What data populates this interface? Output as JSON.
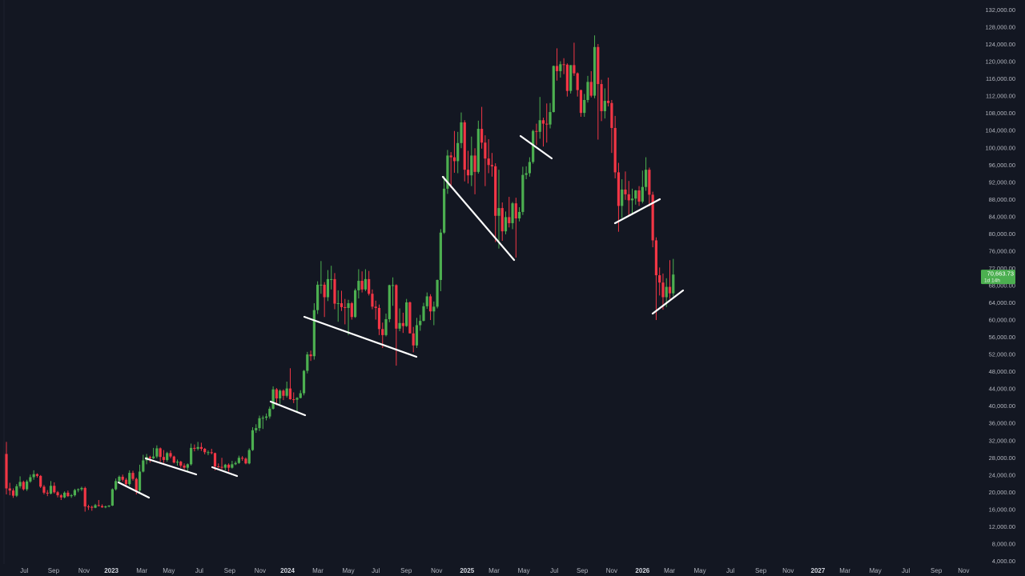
{
  "chart_data": {
    "type": "candlestick",
    "up_color": "#4caf50",
    "down_color": "#f23645",
    "background": "#131722",
    "grid": false,
    "xlim": [
      -1.87,
      283.8
    ],
    "ylim": [
      3440,
      134420
    ],
    "xticks": [
      {
        "value": 5.2,
        "label": "Jul"
      },
      {
        "value": 13.8,
        "label": "Sep"
      },
      {
        "value": 22.7,
        "label": "Nov"
      },
      {
        "value": 30.7,
        "label": "2023"
      },
      {
        "value": 39.6,
        "label": "Mar"
      },
      {
        "value": 47.5,
        "label": "May"
      },
      {
        "value": 56.4,
        "label": "Jul"
      },
      {
        "value": 65.3,
        "label": "Sep"
      },
      {
        "value": 74.2,
        "label": "Nov"
      },
      {
        "value": 82.2,
        "label": "2024"
      },
      {
        "value": 91.1,
        "label": "Mar"
      },
      {
        "value": 100,
        "label": "May"
      },
      {
        "value": 108,
        "label": "Jul"
      },
      {
        "value": 116.9,
        "label": "Sep"
      },
      {
        "value": 125.8,
        "label": "Nov"
      },
      {
        "value": 134.7,
        "label": "2025"
      },
      {
        "value": 142.6,
        "label": "Mar"
      },
      {
        "value": 151.3,
        "label": "May"
      },
      {
        "value": 160.2,
        "label": "Jul"
      },
      {
        "value": 168.4,
        "label": "Sep"
      },
      {
        "value": 177,
        "label": "Nov"
      },
      {
        "value": 186,
        "label": "2026"
      },
      {
        "value": 193.9,
        "label": "Mar"
      },
      {
        "value": 202.8,
        "label": "May"
      },
      {
        "value": 211.7,
        "label": "Jul"
      },
      {
        "value": 220.6,
        "label": "Sep"
      },
      {
        "value": 228.6,
        "label": "Nov"
      },
      {
        "value": 237.3,
        "label": "2027"
      },
      {
        "value": 245.2,
        "label": "Mar"
      },
      {
        "value": 254.1,
        "label": "May"
      },
      {
        "value": 263,
        "label": "Jul"
      },
      {
        "value": 271.9,
        "label": "Sep"
      },
      {
        "value": 279.9,
        "label": "Nov"
      }
    ],
    "yticks": [
      {
        "value": 132000,
        "label": "132,000.00"
      },
      {
        "value": 128000,
        "label": "128,000.00"
      },
      {
        "value": 124000,
        "label": "124,000.00"
      },
      {
        "value": 120000,
        "label": "120,000.00"
      },
      {
        "value": 116000,
        "label": "116,000.00"
      },
      {
        "value": 112000,
        "label": "112,000.00"
      },
      {
        "value": 108000,
        "label": "108,000.00"
      },
      {
        "value": 104000,
        "label": "104,000.00"
      },
      {
        "value": 100000,
        "label": "100,000.00"
      },
      {
        "value": 96000,
        "label": "96,000.00"
      },
      {
        "value": 92000,
        "label": "92,000.00"
      },
      {
        "value": 88000,
        "label": "88,000.00"
      },
      {
        "value": 84000,
        "label": "84,000.00"
      },
      {
        "value": 80000,
        "label": "80,000.00"
      },
      {
        "value": 76000,
        "label": "76,000.00"
      },
      {
        "value": 72000,
        "label": "72,000.00"
      },
      {
        "value": 68000,
        "label": "68,000.00"
      },
      {
        "value": 64000,
        "label": "64,000.00"
      },
      {
        "value": 60000,
        "label": "60,000.00"
      },
      {
        "value": 56000,
        "label": "56,000.00"
      },
      {
        "value": 52000,
        "label": "52,000.00"
      },
      {
        "value": 48000,
        "label": "48,000.00"
      },
      {
        "value": 44000,
        "label": "44,000.00"
      },
      {
        "value": 40000,
        "label": "40,000.00"
      },
      {
        "value": 36000,
        "label": "36,000.00"
      },
      {
        "value": 32000,
        "label": "32,000.00"
      },
      {
        "value": 28000,
        "label": "28,000.00"
      },
      {
        "value": 24000,
        "label": "24,000.00"
      },
      {
        "value": 20000,
        "label": "20,000.00"
      },
      {
        "value": 16000,
        "label": "16,000.00"
      },
      {
        "value": 12000,
        "label": "12,000.00"
      },
      {
        "value": 8000,
        "label": "8,000.00"
      },
      {
        "value": 4000,
        "label": "4,000.00"
      }
    ],
    "last_price": {
      "value": 70663.73,
      "label": "70,663.73"
    },
    "countdown": "1d 14h",
    "ohlc": [
      [
        29000,
        31800,
        19600,
        21000
      ],
      [
        21000,
        22300,
        19400,
        20500
      ],
      [
        20500,
        21000,
        18800,
        19300
      ],
      [
        19300,
        22000,
        19000,
        21500
      ],
      [
        21500,
        23800,
        21000,
        22500
      ],
      [
        22500,
        22800,
        20500,
        20800
      ],
      [
        20800,
        23000,
        20400,
        22600
      ],
      [
        22600,
        24200,
        22300,
        23600
      ],
      [
        23600,
        25200,
        23000,
        24300
      ],
      [
        24300,
        24500,
        23500,
        23900
      ],
      [
        23900,
        24100,
        21100,
        21400
      ],
      [
        21400,
        21800,
        19600,
        20000
      ],
      [
        20000,
        20600,
        19200,
        19800
      ],
      [
        19800,
        22700,
        19600,
        21600
      ],
      [
        21600,
        22400,
        19800,
        20100
      ],
      [
        20100,
        20400,
        18900,
        19400
      ],
      [
        19400,
        19700,
        18300,
        18900
      ],
      [
        18900,
        20300,
        18700,
        20000
      ],
      [
        20000,
        20500,
        19000,
        19200
      ],
      [
        19200,
        19700,
        18800,
        19400
      ],
      [
        19400,
        20900,
        19100,
        20600
      ],
      [
        20600,
        21000,
        20100,
        20800
      ],
      [
        20800,
        21400,
        20400,
        21100
      ],
      [
        21100,
        21400,
        15600,
        16800
      ],
      [
        16800,
        17200,
        16000,
        16700
      ],
      [
        16700,
        17000,
        15800,
        16500
      ],
      [
        16500,
        17400,
        16400,
        17100
      ],
      [
        17100,
        18300,
        16800,
        16900
      ],
      [
        16900,
        17300,
        16500,
        16600
      ],
      [
        16600,
        17000,
        16400,
        16800
      ],
      [
        16800,
        17100,
        16600,
        17000
      ],
      [
        17000,
        21000,
        16900,
        20800
      ],
      [
        20800,
        23300,
        20500,
        22700
      ],
      [
        22700,
        24000,
        22400,
        23700
      ],
      [
        23700,
        24200,
        22600,
        23000
      ],
      [
        23000,
        23400,
        21400,
        22000
      ],
      [
        22000,
        25200,
        21600,
        24600
      ],
      [
        24600,
        25100,
        22800,
        23200
      ],
      [
        23200,
        23500,
        19600,
        20500
      ],
      [
        20500,
        26500,
        20000,
        24900
      ],
      [
        24900,
        28800,
        24700,
        27500
      ],
      [
        27500,
        29000,
        26600,
        28300
      ],
      [
        28300,
        28600,
        27000,
        28000
      ],
      [
        28000,
        30400,
        27800,
        28400
      ],
      [
        28400,
        31000,
        28000,
        30300
      ],
      [
        30300,
        30500,
        27200,
        28300
      ],
      [
        28300,
        29900,
        26900,
        27600
      ],
      [
        27600,
        29500,
        27200,
        29200
      ],
      [
        29200,
        29800,
        28000,
        28400
      ],
      [
        28400,
        28600,
        26800,
        27000
      ],
      [
        27000,
        27700,
        26300,
        27200
      ],
      [
        27200,
        27400,
        25800,
        26300
      ],
      [
        26300,
        26800,
        25400,
        25800
      ],
      [
        25800,
        26800,
        24800,
        26600
      ],
      [
        26600,
        31400,
        26300,
        30400
      ],
      [
        30400,
        31200,
        29600,
        30200
      ],
      [
        30200,
        31800,
        29800,
        30600
      ],
      [
        30600,
        31600,
        29700,
        30200
      ],
      [
        30200,
        30400,
        28900,
        29400
      ],
      [
        29400,
        29800,
        28700,
        29400
      ],
      [
        29400,
        30200,
        28900,
        29200
      ],
      [
        29200,
        29300,
        25200,
        26100
      ],
      [
        26100,
        26800,
        25800,
        26000
      ],
      [
        26000,
        28100,
        25400,
        25800
      ],
      [
        25800,
        26700,
        25200,
        26500
      ],
      [
        26500,
        26800,
        24900,
        25800
      ],
      [
        25800,
        27400,
        25600,
        26600
      ],
      [
        26600,
        27300,
        26400,
        26900
      ],
      [
        26900,
        28600,
        26700,
        28100
      ],
      [
        28100,
        28500,
        27400,
        27900
      ],
      [
        27900,
        28200,
        26600,
        26800
      ],
      [
        26800,
        30300,
        26600,
        29900
      ],
      [
        29900,
        35200,
        29700,
        34500
      ],
      [
        34500,
        35900,
        33900,
        35000
      ],
      [
        35000,
        37900,
        34300,
        37300
      ],
      [
        37300,
        37900,
        34800,
        37400
      ],
      [
        37400,
        38400,
        36800,
        37700
      ],
      [
        37700,
        40000,
        37200,
        39500
      ],
      [
        39500,
        44700,
        39300,
        44000
      ],
      [
        44000,
        44300,
        40300,
        41900
      ],
      [
        41900,
        44000,
        40600,
        43700
      ],
      [
        43700,
        44000,
        41500,
        42500
      ],
      [
        42500,
        45800,
        42100,
        44200
      ],
      [
        44200,
        48900,
        41600,
        41700
      ],
      [
        41700,
        43300,
        40800,
        41600
      ],
      [
        41600,
        42200,
        38600,
        42000
      ],
      [
        42000,
        43800,
        41900,
        43100
      ],
      [
        43100,
        48500,
        42600,
        48300
      ],
      [
        48300,
        52700,
        47700,
        52100
      ],
      [
        52100,
        53000,
        50600,
        51700
      ],
      [
        51700,
        64000,
        50900,
        62400
      ],
      [
        62400,
        69100,
        61500,
        68300
      ],
      [
        68300,
        73800,
        66200,
        68300
      ],
      [
        68300,
        68900,
        60800,
        65400
      ],
      [
        65400,
        71700,
        64500,
        69600
      ],
      [
        69600,
        72700,
        67200,
        69600
      ],
      [
        69600,
        71000,
        62600,
        63900
      ],
      [
        63900,
        67000,
        59700,
        64000
      ],
      [
        64000,
        66900,
        62200,
        63100
      ],
      [
        63100,
        65000,
        59100,
        62900
      ],
      [
        62900,
        64800,
        56600,
        64000
      ],
      [
        64000,
        64300,
        60200,
        60800
      ],
      [
        60800,
        67400,
        60600,
        67000
      ],
      [
        67000,
        71900,
        65100,
        69200
      ],
      [
        69200,
        71400,
        66500,
        67200
      ],
      [
        67200,
        71900,
        66800,
        69600
      ],
      [
        69600,
        71500,
        65800,
        66200
      ],
      [
        66200,
        67200,
        62600,
        63200
      ],
      [
        63200,
        64600,
        60200,
        62900
      ],
      [
        62900,
        63700,
        56600,
        58000
      ],
      [
        58000,
        59500,
        53600,
        56600
      ],
      [
        56600,
        61600,
        56300,
        60300
      ],
      [
        60300,
        68300,
        59600,
        68200
      ],
      [
        68200,
        70000,
        63400,
        68200
      ],
      [
        68200,
        68400,
        49500,
        58100
      ],
      [
        58100,
        62800,
        57500,
        59400
      ],
      [
        59400,
        61800,
        57100,
        58700
      ],
      [
        58700,
        65000,
        58500,
        64200
      ],
      [
        64200,
        64400,
        57000,
        57000
      ],
      [
        57000,
        58500,
        52600,
        54200
      ],
      [
        54200,
        60600,
        53600,
        58900
      ],
      [
        58900,
        61300,
        57600,
        59900
      ],
      [
        59900,
        64100,
        59800,
        63300
      ],
      [
        63300,
        66500,
        62700,
        65600
      ],
      [
        65600,
        66100,
        60100,
        62100
      ],
      [
        62100,
        64400,
        58900,
        63200
      ],
      [
        63200,
        69500,
        62800,
        69400
      ],
      [
        69400,
        81200,
        66800,
        80400
      ],
      [
        80400,
        93500,
        80100,
        90600
      ],
      [
        90600,
        99600,
        89400,
        98300
      ],
      [
        98300,
        99100,
        90800,
        97900
      ],
      [
        97900,
        104000,
        94300,
        97000
      ],
      [
        97000,
        103800,
        94200,
        101200
      ],
      [
        101200,
        108300,
        100000,
        106000
      ],
      [
        106000,
        106500,
        92300,
        95000
      ],
      [
        95000,
        99400,
        91800,
        93700
      ],
      [
        93700,
        102700,
        91200,
        98300
      ],
      [
        98300,
        100000,
        89300,
        94500
      ],
      [
        94500,
        106400,
        94100,
        104500
      ],
      [
        104500,
        109600,
        99900,
        101300
      ],
      [
        101300,
        103000,
        91200,
        97600
      ],
      [
        97600,
        102100,
        94200,
        96100
      ],
      [
        96100,
        98900,
        93400,
        95800
      ],
      [
        95800,
        96500,
        78200,
        84300
      ],
      [
        84300,
        95000,
        76700,
        86100
      ],
      [
        86100,
        87400,
        78500,
        80700
      ],
      [
        80700,
        85300,
        80000,
        84000
      ],
      [
        84000,
        88700,
        81600,
        82600
      ],
      [
        82600,
        87500,
        81200,
        87200
      ],
      [
        87200,
        88500,
        74600,
        83700
      ],
      [
        83700,
        86300,
        83000,
        85200
      ],
      [
        85200,
        95700,
        84500,
        93800
      ],
      [
        93800,
        95800,
        92800,
        94200
      ],
      [
        94200,
        97900,
        93400,
        96800
      ],
      [
        96800,
        104300,
        96400,
        104000
      ],
      [
        104000,
        105700,
        100700,
        103800
      ],
      [
        103800,
        111900,
        102200,
        106500
      ],
      [
        106500,
        107100,
        100400,
        105700
      ],
      [
        105700,
        110400,
        101300,
        105500
      ],
      [
        105500,
        110500,
        104600,
        108400
      ],
      [
        108400,
        119200,
        108300,
        119100
      ],
      [
        119100,
        123200,
        115700,
        117900
      ],
      [
        117900,
        120200,
        116400,
        119500
      ],
      [
        119500,
        120900,
        117200,
        119400
      ],
      [
        119400,
        119700,
        112000,
        113300
      ],
      [
        113300,
        119300,
        112700,
        119300
      ],
      [
        119300,
        124500,
        116800,
        117400
      ],
      [
        117400,
        117600,
        112000,
        113500
      ],
      [
        113500,
        113600,
        107300,
        108200
      ],
      [
        108200,
        112600,
        107300,
        111200
      ],
      [
        111200,
        116800,
        110600,
        115400
      ],
      [
        115400,
        117900,
        111800,
        112200
      ],
      [
        112200,
        126200,
        111600,
        123500
      ],
      [
        123500,
        124200,
        102000,
        114900
      ],
      [
        114900,
        115900,
        106300,
        108600
      ],
      [
        108600,
        113900,
        106900,
        111000
      ],
      [
        111000,
        116400,
        109700,
        110500
      ],
      [
        110500,
        111200,
        98900,
        104700
      ],
      [
        104700,
        107500,
        93000,
        94400
      ],
      [
        94400,
        96600,
        80600,
        86600
      ],
      [
        86600,
        92800,
        83800,
        90400
      ],
      [
        90400,
        94600,
        88000,
        89300
      ],
      [
        89300,
        92400,
        84400,
        87900
      ],
      [
        87900,
        90600,
        84500,
        88300
      ],
      [
        88300,
        90300,
        86900,
        90200
      ],
      [
        90200,
        91200,
        86600,
        87600
      ],
      [
        87600,
        94800,
        87200,
        91000
      ],
      [
        91000,
        97900,
        90100,
        95000
      ],
      [
        95000,
        95500,
        86500,
        89200
      ],
      [
        89200,
        89900,
        77000,
        78600
      ],
      [
        78600,
        79300,
        60100,
        70500
      ],
      [
        70500,
        72300,
        65800,
        68800
      ],
      [
        68800,
        70900,
        62500,
        65400
      ],
      [
        65400,
        69800,
        63100,
        67800
      ],
      [
        67800,
        74000,
        65000,
        66300
      ],
      [
        66300,
        74300,
        65600,
        70663.73
      ]
    ]
  }
}
